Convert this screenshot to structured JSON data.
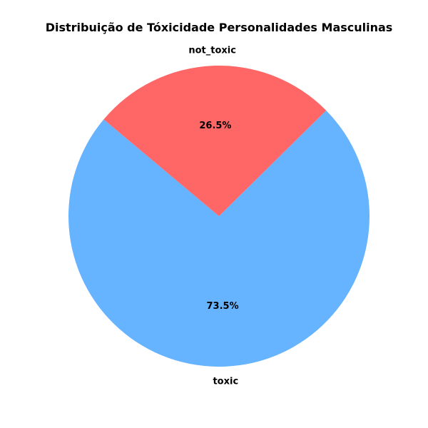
{
  "chart_data": {
    "type": "pie",
    "title": "Distribuição de Tóxicidade Personalidades Masculinas",
    "categories": [
      "toxic",
      "not_toxic"
    ],
    "values": [
      73.5,
      26.5
    ],
    "percent_labels": [
      "73.5%",
      "26.5%"
    ],
    "colors": [
      "#66b3ff",
      "#ff6666"
    ],
    "start_angle_deg": 140,
    "legend": false
  }
}
